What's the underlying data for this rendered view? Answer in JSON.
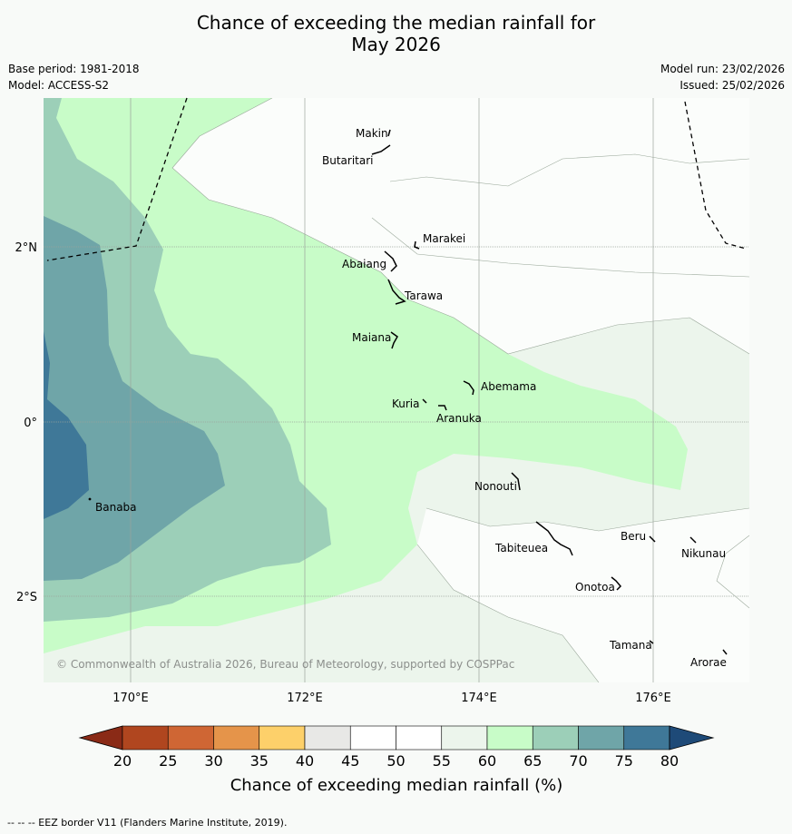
{
  "header": {
    "title_line1": "Chance of exceeding the median rainfall for",
    "title_line2": "May 2026",
    "base_period": "Base period: 1981-2018",
    "model": "Model: ACCESS-S2",
    "model_run": "Model run: 23/02/2026",
    "issued": "Issued: 25/02/2026"
  },
  "map": {
    "lat_labels": [
      "2°N",
      "0°",
      "2°S"
    ],
    "lon_labels": [
      "170°E",
      "172°E",
      "174°E",
      "176°E"
    ],
    "copyright": "© Commonwealth of Australia 2026, Bureau of Meteorology, supported by COSPPac",
    "places": [
      "Makin",
      "Butaritari",
      "Marakei",
      "Abaiang",
      "Tarawa",
      "Maiana",
      "Abemama",
      "Kuria",
      "Aranuka",
      "Nonouti",
      "Banaba",
      "Beru",
      "Nikunau",
      "Tabiteuea",
      "Onotoa",
      "Tamana",
      "Arorae"
    ]
  },
  "legend": {
    "ticks": [
      "20",
      "25",
      "30",
      "35",
      "40",
      "45",
      "50",
      "55",
      "60",
      "65",
      "70",
      "75",
      "80"
    ],
    "colors": [
      "#b0461f",
      "#cf6634",
      "#e5944a",
      "#fdd06a",
      "#e8e8e6",
      "#ffffff",
      "#ffffff",
      "#ecf5ec",
      "#c8fcc8",
      "#9ccfb8",
      "#6fa5a8",
      "#3f7898"
    ],
    "under_color": "#8a2a16",
    "over_color": "#1e4a78",
    "label": "Chance of exceeding median rainfall (%)"
  },
  "footer": {
    "eez_note": "--  --  -- EEZ border V11 (Flanders Marine Institute, 2019)."
  }
}
